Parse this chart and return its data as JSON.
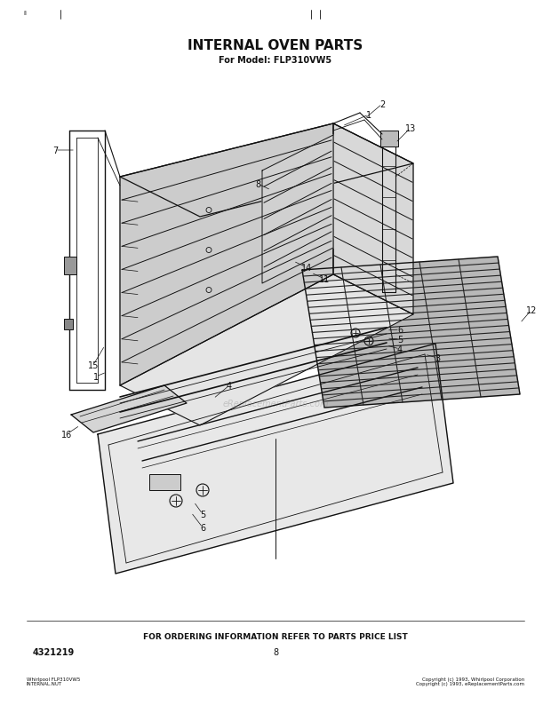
{
  "title": "INTERNAL OVEN PARTS",
  "subtitle": "For Model: FLP310VW5",
  "footer_text": "FOR ORDERING INFORMATION REFER TO PARTS PRICE LIST",
  "part_number": "4321219",
  "page_number": "8",
  "bg_color": "#ffffff",
  "line_color": "#111111",
  "title_fontsize": 11,
  "subtitle_fontsize": 7,
  "footer_fontsize": 6.5,
  "label_fontsize": 7,
  "watermark": "eReplacementParts.com",
  "bottom_left_small": "Whirlpool FLP310VW5\nINTERNAL.NUT",
  "bottom_right_small": "Copyright (c) 1993, Whirlpool Corporation\nCopyright (c) 1993, eReplacementParts.com"
}
